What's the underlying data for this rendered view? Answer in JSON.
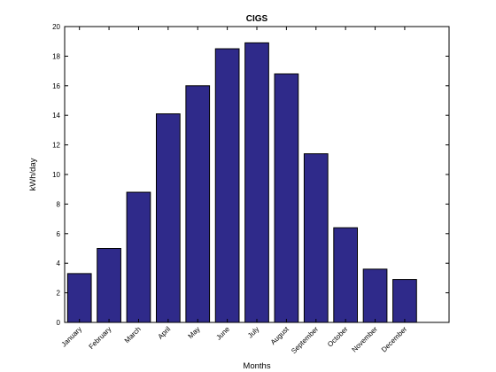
{
  "chart_data": {
    "type": "bar",
    "title": "CIGS",
    "xlabel": "Months",
    "ylabel": "kWh/day",
    "categories": [
      "January",
      "February",
      "March",
      "April",
      "May",
      "June",
      "July",
      "August",
      "September",
      "October",
      "November",
      "December"
    ],
    "values": [
      3.3,
      5.0,
      8.8,
      14.1,
      16.0,
      18.5,
      18.9,
      16.8,
      11.4,
      6.4,
      3.6,
      2.9
    ],
    "yticks": [
      "0",
      "2",
      "4",
      "6",
      "8",
      "10",
      "12",
      "14",
      "16",
      "18",
      "20"
    ],
    "ylim": [
      0,
      20
    ],
    "grid": false,
    "bar_color": "#2f2a8a",
    "bar_edge_color": "#000000"
  }
}
